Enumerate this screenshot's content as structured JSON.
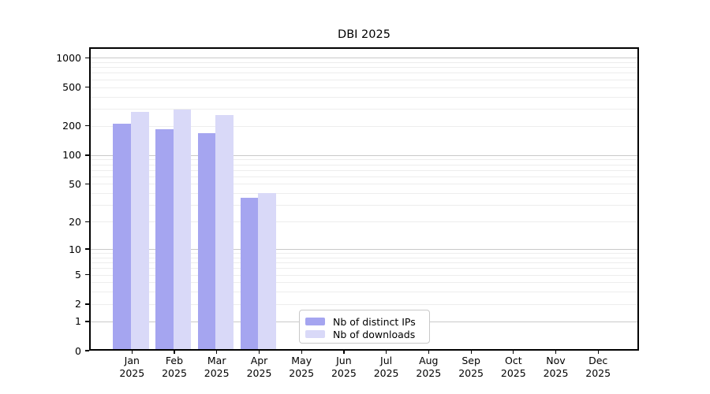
{
  "title": "DBI 2025",
  "chart_data": {
    "type": "bar",
    "title": "DBI 2025",
    "categories": [
      "Jan",
      "Feb",
      "Mar",
      "Apr",
      "May",
      "Jun",
      "Jul",
      "Aug",
      "Sep",
      "Oct",
      "Nov",
      "Dec"
    ],
    "year": "2025",
    "series": [
      {
        "name": "Nb of distinct IPs",
        "color": "#a5a5f0",
        "values": [
          212,
          186,
          168,
          36,
          0,
          0,
          0,
          0,
          0,
          0,
          0,
          0
        ]
      },
      {
        "name": "Nb of downloads",
        "color": "#d9d9f8",
        "values": [
          277,
          295,
          260,
          40,
          0,
          0,
          0,
          0,
          0,
          0,
          0,
          0
        ]
      }
    ],
    "yticks": [
      0,
      1,
      2,
      5,
      10,
      20,
      50,
      100,
      200,
      500,
      1000
    ],
    "scale": "log10(value+1)",
    "ylim": [
      0,
      1264
    ],
    "grid": "horizontal minor gridlines at 2-9 mantissa steps, emphasized lines at powers of 10",
    "legend_position": "lower center inside plot"
  },
  "colors": {
    "axis": "#000000",
    "grid_minor": "#ededed",
    "grid_major": "#c9c9c9",
    "background": "#ffffff"
  }
}
